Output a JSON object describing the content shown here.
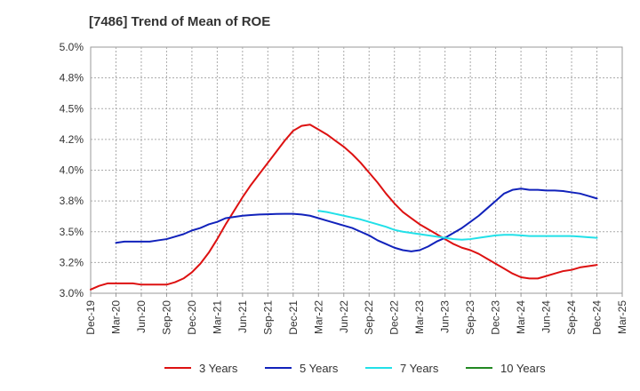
{
  "chart_data": {
    "type": "line",
    "title": "[7486]  Trend of Mean of ROE",
    "xlabel": "",
    "ylabel": "",
    "x_ticks": [
      "Dec-19",
      "Mar-20",
      "Jun-20",
      "Sep-20",
      "Dec-20",
      "Mar-21",
      "Jun-21",
      "Sep-21",
      "Dec-21",
      "Mar-22",
      "Jun-22",
      "Sep-22",
      "Dec-22",
      "Mar-23",
      "Jun-23",
      "Sep-23",
      "Dec-23",
      "Mar-24",
      "Jun-24",
      "Sep-24",
      "Dec-24",
      "Mar-25"
    ],
    "y_ticks": [
      "3.0%",
      "3.2%",
      "3.5%",
      "3.8%",
      "4.0%",
      "4.2%",
      "4.5%",
      "4.8%",
      "5.0%"
    ],
    "ylim": [
      3.0,
      5.0
    ],
    "grid": true,
    "legend_position": "bottom",
    "series": [
      {
        "name": "3 Years",
        "color": "#dd1111",
        "points": [
          [
            "Dec-19",
            3.03
          ],
          [
            "Jan-20",
            3.06
          ],
          [
            "Feb-20",
            3.08
          ],
          [
            "Mar-20",
            3.08
          ],
          [
            "Apr-20",
            3.08
          ],
          [
            "May-20",
            3.08
          ],
          [
            "Jun-20",
            3.07
          ],
          [
            "Jul-20",
            3.07
          ],
          [
            "Aug-20",
            3.07
          ],
          [
            "Sep-20",
            3.07
          ],
          [
            "Oct-20",
            3.09
          ],
          [
            "Nov-20",
            3.12
          ],
          [
            "Dec-20",
            3.17
          ],
          [
            "Jan-21",
            3.24
          ],
          [
            "Feb-21",
            3.33
          ],
          [
            "Mar-21",
            3.44
          ],
          [
            "Apr-21",
            3.56
          ],
          [
            "May-21",
            3.67
          ],
          [
            "Jun-21",
            3.78
          ],
          [
            "Jul-21",
            3.88
          ],
          [
            "Aug-21",
            3.97
          ],
          [
            "Sep-21",
            4.06
          ],
          [
            "Oct-21",
            4.15
          ],
          [
            "Nov-21",
            4.24
          ],
          [
            "Dec-21",
            4.32
          ],
          [
            "Jan-22",
            4.36
          ],
          [
            "Feb-22",
            4.37
          ],
          [
            "Mar-22",
            4.33
          ],
          [
            "Apr-22",
            4.29
          ],
          [
            "May-22",
            4.24
          ],
          [
            "Jun-22",
            4.19
          ],
          [
            "Jul-22",
            4.13
          ],
          [
            "Aug-22",
            4.06
          ],
          [
            "Sep-22",
            3.98
          ],
          [
            "Oct-22",
            3.9
          ],
          [
            "Nov-22",
            3.81
          ],
          [
            "Dec-22",
            3.73
          ],
          [
            "Jan-23",
            3.66
          ],
          [
            "Feb-23",
            3.61
          ],
          [
            "Mar-23",
            3.56
          ],
          [
            "Apr-23",
            3.52
          ],
          [
            "May-23",
            3.48
          ],
          [
            "Jun-23",
            3.44
          ],
          [
            "Jul-23",
            3.4
          ],
          [
            "Aug-23",
            3.37
          ],
          [
            "Sep-23",
            3.35
          ],
          [
            "Oct-23",
            3.32
          ],
          [
            "Nov-23",
            3.28
          ],
          [
            "Dec-23",
            3.24
          ],
          [
            "Jan-24",
            3.2
          ],
          [
            "Feb-24",
            3.16
          ],
          [
            "Mar-24",
            3.13
          ],
          [
            "Apr-24",
            3.12
          ],
          [
            "May-24",
            3.12
          ],
          [
            "Jun-24",
            3.14
          ],
          [
            "Jul-24",
            3.16
          ],
          [
            "Aug-24",
            3.18
          ],
          [
            "Sep-24",
            3.19
          ],
          [
            "Oct-24",
            3.21
          ],
          [
            "Nov-24",
            3.22
          ],
          [
            "Dec-24",
            3.23
          ]
        ]
      },
      {
        "name": "5 Years",
        "color": "#1122bb",
        "points": [
          [
            "Mar-20",
            3.41
          ],
          [
            "Apr-20",
            3.42
          ],
          [
            "May-20",
            3.42
          ],
          [
            "Jun-20",
            3.42
          ],
          [
            "Jul-20",
            3.42
          ],
          [
            "Aug-20",
            3.43
          ],
          [
            "Sep-20",
            3.44
          ],
          [
            "Oct-20",
            3.46
          ],
          [
            "Nov-20",
            3.48
          ],
          [
            "Dec-20",
            3.51
          ],
          [
            "Jan-21",
            3.53
          ],
          [
            "Feb-21",
            3.56
          ],
          [
            "Mar-21",
            3.58
          ],
          [
            "Apr-21",
            3.61
          ],
          [
            "May-21",
            3.62
          ],
          [
            "Jun-21",
            3.63
          ],
          [
            "Jul-21",
            3.635
          ],
          [
            "Aug-21",
            3.64
          ],
          [
            "Sep-21",
            3.642
          ],
          [
            "Oct-21",
            3.644
          ],
          [
            "Nov-21",
            3.645
          ],
          [
            "Dec-21",
            3.645
          ],
          [
            "Jan-22",
            3.64
          ],
          [
            "Feb-22",
            3.63
          ],
          [
            "Mar-22",
            3.61
          ],
          [
            "Apr-22",
            3.59
          ],
          [
            "May-22",
            3.57
          ],
          [
            "Jun-22",
            3.55
          ],
          [
            "Jul-22",
            3.53
          ],
          [
            "Aug-22",
            3.5
          ],
          [
            "Sep-22",
            3.47
          ],
          [
            "Oct-22",
            3.43
          ],
          [
            "Nov-22",
            3.4
          ],
          [
            "Dec-22",
            3.37
          ],
          [
            "Jan-23",
            3.35
          ],
          [
            "Feb-23",
            3.34
          ],
          [
            "Mar-23",
            3.35
          ],
          [
            "Apr-23",
            3.38
          ],
          [
            "May-23",
            3.42
          ],
          [
            "Jun-23",
            3.45
          ],
          [
            "Jul-23",
            3.49
          ],
          [
            "Aug-23",
            3.53
          ],
          [
            "Sep-23",
            3.58
          ],
          [
            "Oct-23",
            3.63
          ],
          [
            "Nov-23",
            3.69
          ],
          [
            "Dec-23",
            3.75
          ],
          [
            "Jan-24",
            3.81
          ],
          [
            "Feb-24",
            3.84
          ],
          [
            "Mar-24",
            3.85
          ],
          [
            "Apr-24",
            3.84
          ],
          [
            "May-24",
            3.84
          ],
          [
            "Jun-24",
            3.835
          ],
          [
            "Jul-24",
            3.835
          ],
          [
            "Aug-24",
            3.83
          ],
          [
            "Sep-24",
            3.82
          ],
          [
            "Oct-24",
            3.81
          ],
          [
            "Nov-24",
            3.79
          ],
          [
            "Dec-24",
            3.77
          ]
        ]
      },
      {
        "name": "7 Years",
        "color": "#22e0e8",
        "points": [
          [
            "Mar-22",
            3.67
          ],
          [
            "Apr-22",
            3.66
          ],
          [
            "May-22",
            3.645
          ],
          [
            "Jun-22",
            3.63
          ],
          [
            "Jul-22",
            3.615
          ],
          [
            "Aug-22",
            3.6
          ],
          [
            "Sep-22",
            3.58
          ],
          [
            "Oct-22",
            3.56
          ],
          [
            "Nov-22",
            3.54
          ],
          [
            "Dec-22",
            3.515
          ],
          [
            "Jan-23",
            3.5
          ],
          [
            "Feb-23",
            3.49
          ],
          [
            "Mar-23",
            3.48
          ],
          [
            "Apr-23",
            3.47
          ],
          [
            "May-23",
            3.46
          ],
          [
            "Jun-23",
            3.45
          ],
          [
            "Jul-23",
            3.44
          ],
          [
            "Aug-23",
            3.435
          ],
          [
            "Sep-23",
            3.44
          ],
          [
            "Oct-23",
            3.45
          ],
          [
            "Nov-23",
            3.46
          ],
          [
            "Dec-23",
            3.47
          ],
          [
            "Jan-24",
            3.475
          ],
          [
            "Feb-24",
            3.475
          ],
          [
            "Mar-24",
            3.47
          ],
          [
            "Apr-24",
            3.465
          ],
          [
            "May-24",
            3.465
          ],
          [
            "Jun-24",
            3.465
          ],
          [
            "Jul-24",
            3.465
          ],
          [
            "Aug-24",
            3.465
          ],
          [
            "Sep-24",
            3.465
          ],
          [
            "Oct-24",
            3.46
          ],
          [
            "Nov-24",
            3.455
          ],
          [
            "Dec-24",
            3.45
          ]
        ]
      },
      {
        "name": "10 Years",
        "color": "#228822",
        "points": []
      }
    ]
  }
}
